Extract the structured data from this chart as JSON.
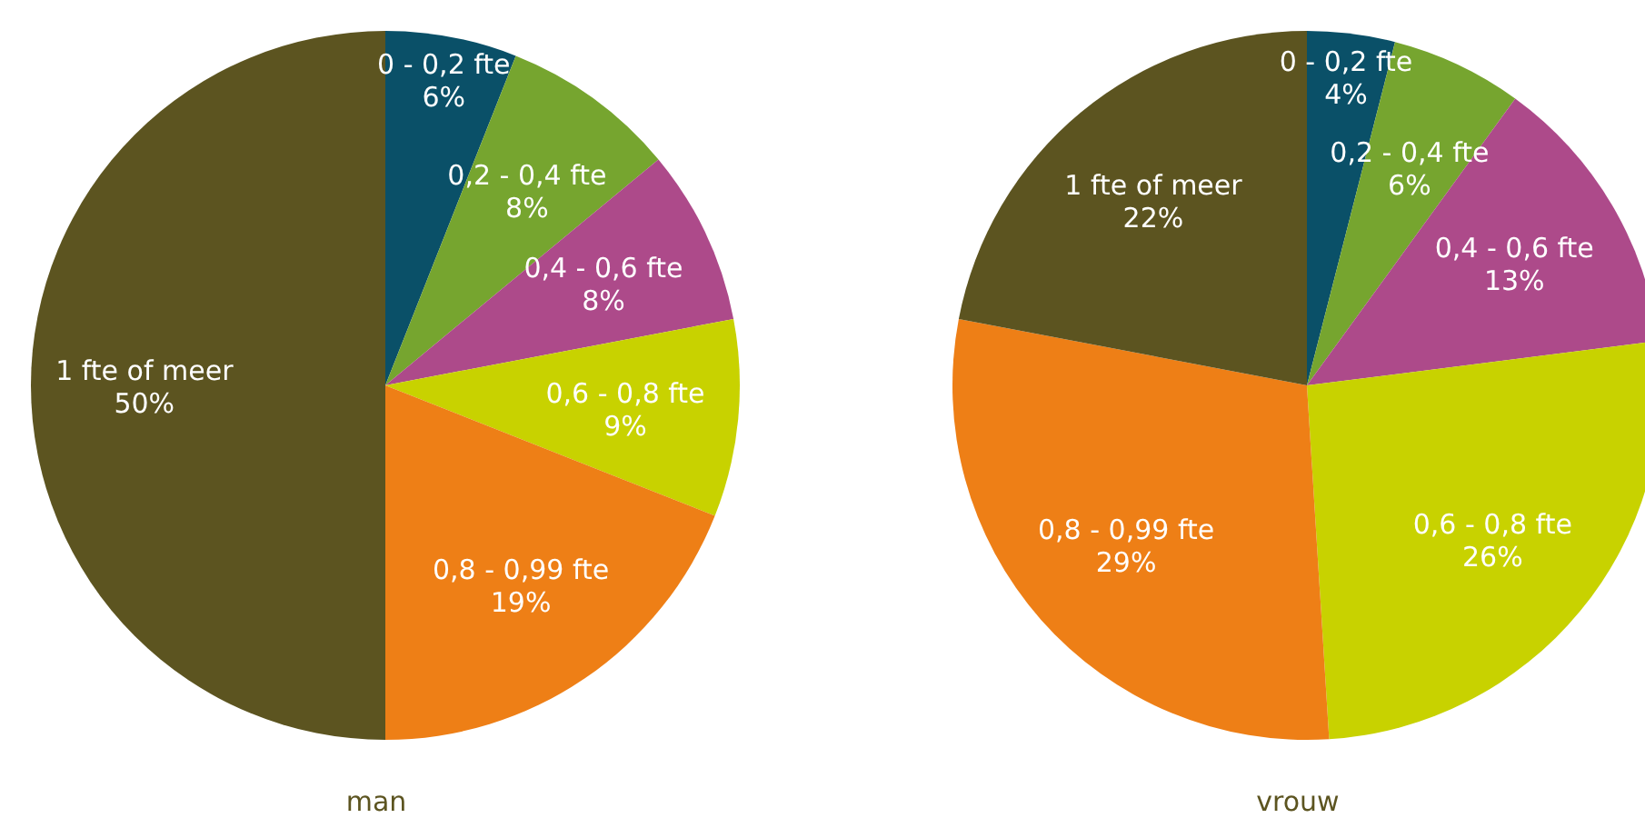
{
  "chart_data": [
    {
      "type": "pie",
      "title": "man",
      "categories": [
        "0 - 0,2 fte",
        "0,2 - 0,4 fte",
        "0,4 - 0,6 fte",
        "0,6 - 0,8 fte",
        "0,8 - 0,99 fte",
        "1 fte of meer"
      ],
      "values": [
        6,
        8,
        8,
        9,
        19,
        50
      ],
      "value_labels": [
        "6%",
        "8%",
        "8%",
        "9%",
        "19%",
        "50%"
      ],
      "colors": [
        "#0a5068",
        "#76a52f",
        "#ad4a8a",
        "#c8d200",
        "#ee7f16",
        "#5c5420"
      ]
    },
    {
      "type": "pie",
      "title": "vrouw",
      "categories": [
        "0 - 0,2 fte",
        "0,2 - 0,4 fte",
        "0,4 - 0,6 fte",
        "0,6 - 0,8 fte",
        "0,8 - 0,99 fte",
        "1 fte of meer"
      ],
      "values": [
        4,
        6,
        13,
        26,
        29,
        22
      ],
      "value_labels": [
        "4%",
        "6%",
        "13%",
        "26%",
        "29%",
        "22%"
      ],
      "colors": [
        "#0a5068",
        "#76a52f",
        "#ad4a8a",
        "#c8d200",
        "#ee7f16",
        "#5c5420"
      ]
    }
  ]
}
